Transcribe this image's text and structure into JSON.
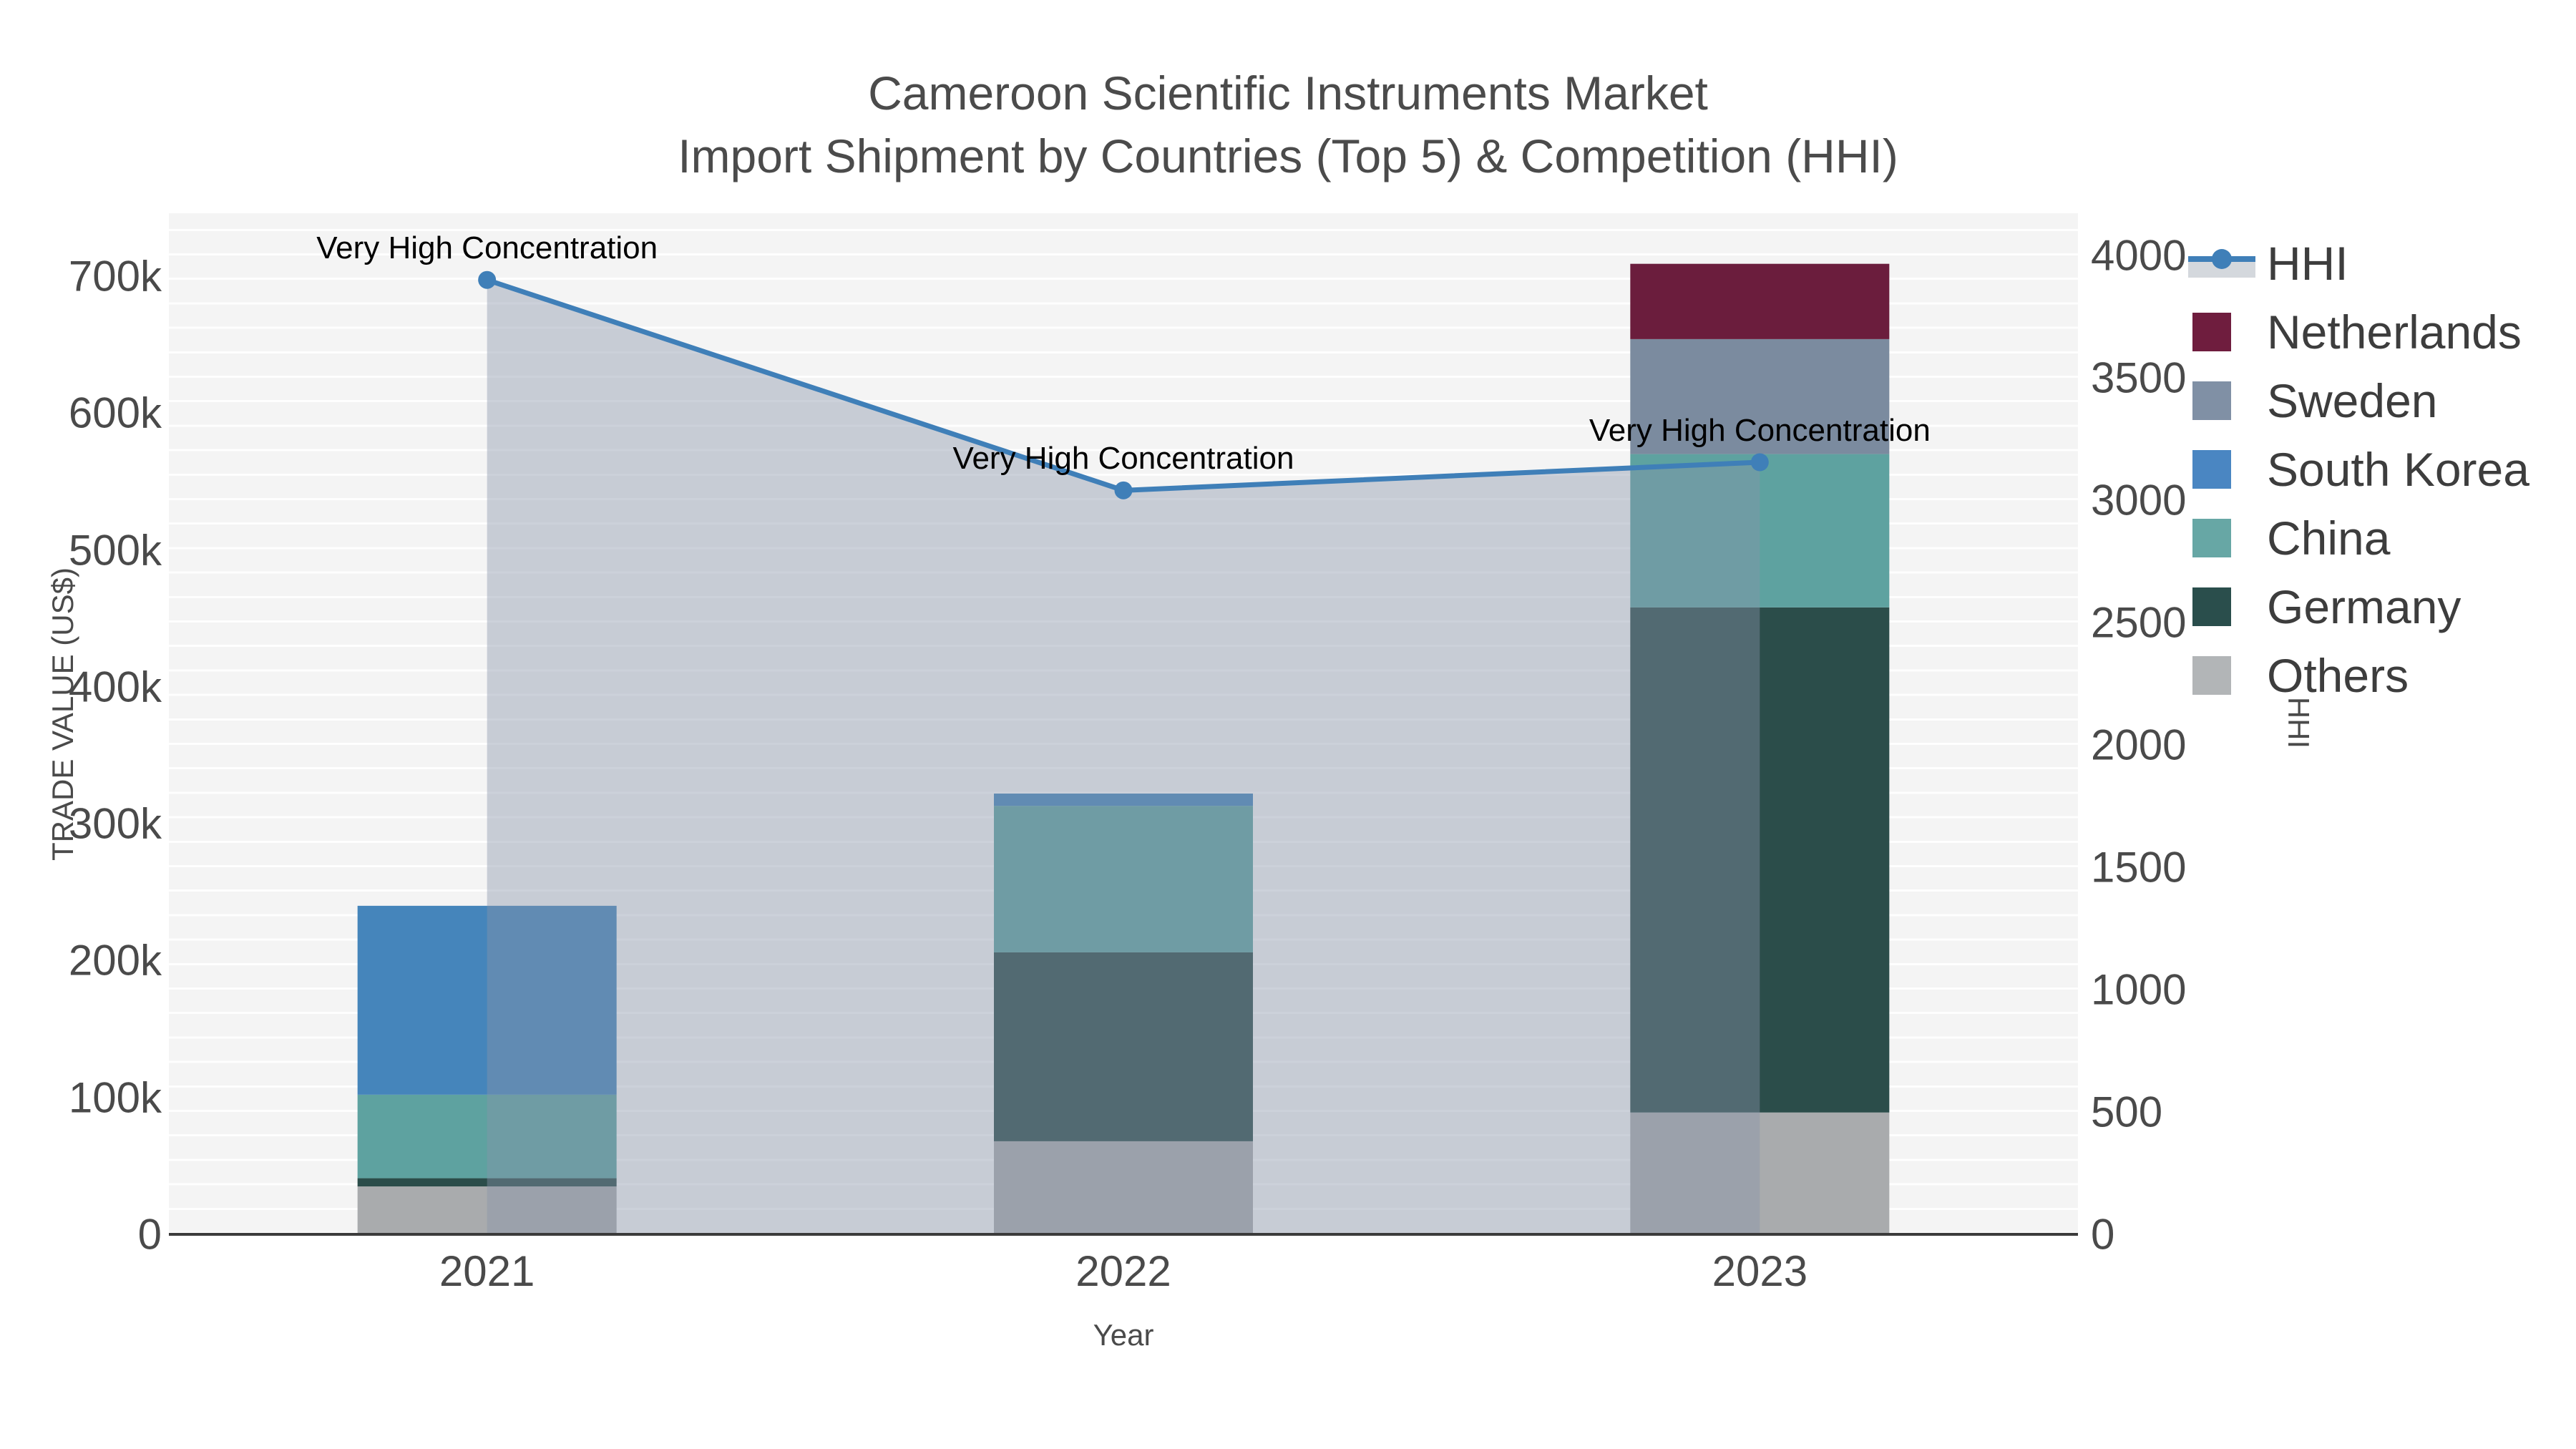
{
  "chart_data": {
    "type": "composite_bar_line",
    "title_line1": "Cameroon Scientific Instruments Market",
    "title_line2": "Import Shipment by Countries (Top 5) & Competition (HHI)",
    "x": {
      "title": "Year",
      "categories": [
        "2021",
        "2022",
        "2023"
      ]
    },
    "left_axis": {
      "title": "TRADE VALUE (US$)",
      "tick_labels": [
        "0",
        "100k",
        "200k",
        "300k",
        "400k",
        "500k",
        "600k",
        "700k"
      ],
      "tick_values": [
        0,
        100000,
        200000,
        300000,
        400000,
        500000,
        600000,
        700000
      ],
      "range": [
        0,
        746000
      ],
      "grid": "minor horizontal lines"
    },
    "right_axis": {
      "title": "HHI",
      "tick_labels": [
        "0",
        "500",
        "1000",
        "1500",
        "2000",
        "2500",
        "3000",
        "3500",
        "4000"
      ],
      "tick_values": [
        0,
        500,
        1000,
        1500,
        2000,
        2500,
        3000,
        3500,
        4000
      ],
      "range": [
        0,
        4170
      ]
    },
    "bar_series": [
      {
        "name": "Others",
        "color": "#a9abad",
        "values": [
          35000,
          68000,
          89000
        ]
      },
      {
        "name": "Germany",
        "color": "#2b4d4a",
        "values": [
          6000,
          138000,
          369000
        ]
      },
      {
        "name": "China",
        "color": "#5ea2a0",
        "values": [
          61000,
          107000,
          112000
        ]
      },
      {
        "name": "South Korea",
        "color": "#4585bb",
        "values": [
          138000,
          9000,
          0
        ]
      },
      {
        "name": "Sweden",
        "color": "#7b8b9f",
        "values": [
          0,
          0,
          84000
        ]
      },
      {
        "name": "Netherlands",
        "color": "#6b1d3d",
        "values": [
          0,
          0,
          55000
        ]
      }
    ],
    "bar_totals": [
      240000,
      322000,
      709000
    ],
    "line_series": {
      "name": "HHI",
      "color": "#3f7fb8",
      "area_fill": "rgba(135,148,170,0.42)",
      "values": [
        3900,
        3040,
        3155
      ]
    },
    "annotations": [
      {
        "text": "Very High Concentration",
        "x_index": 0
      },
      {
        "text": "Very High Concentration",
        "x_index": 1
      },
      {
        "text": "Very High Concentration",
        "x_index": 2
      }
    ],
    "legend_position": "right"
  },
  "legend": {
    "items": [
      {
        "label": "HHI",
        "type": "line",
        "color": "#3f7fb8"
      },
      {
        "label": "Netherlands",
        "type": "swatch",
        "color": "#6f1d3e"
      },
      {
        "label": "Sweden",
        "type": "swatch",
        "color": "#8090a5"
      },
      {
        "label": "South Korea",
        "type": "swatch",
        "color": "#4a86c2"
      },
      {
        "label": "China",
        "type": "swatch",
        "color": "#67a7a5"
      },
      {
        "label": "Germany",
        "type": "swatch",
        "color": "#2a4e4c"
      },
      {
        "label": "Others",
        "type": "swatch",
        "color": "#b2b5b7"
      }
    ]
  }
}
